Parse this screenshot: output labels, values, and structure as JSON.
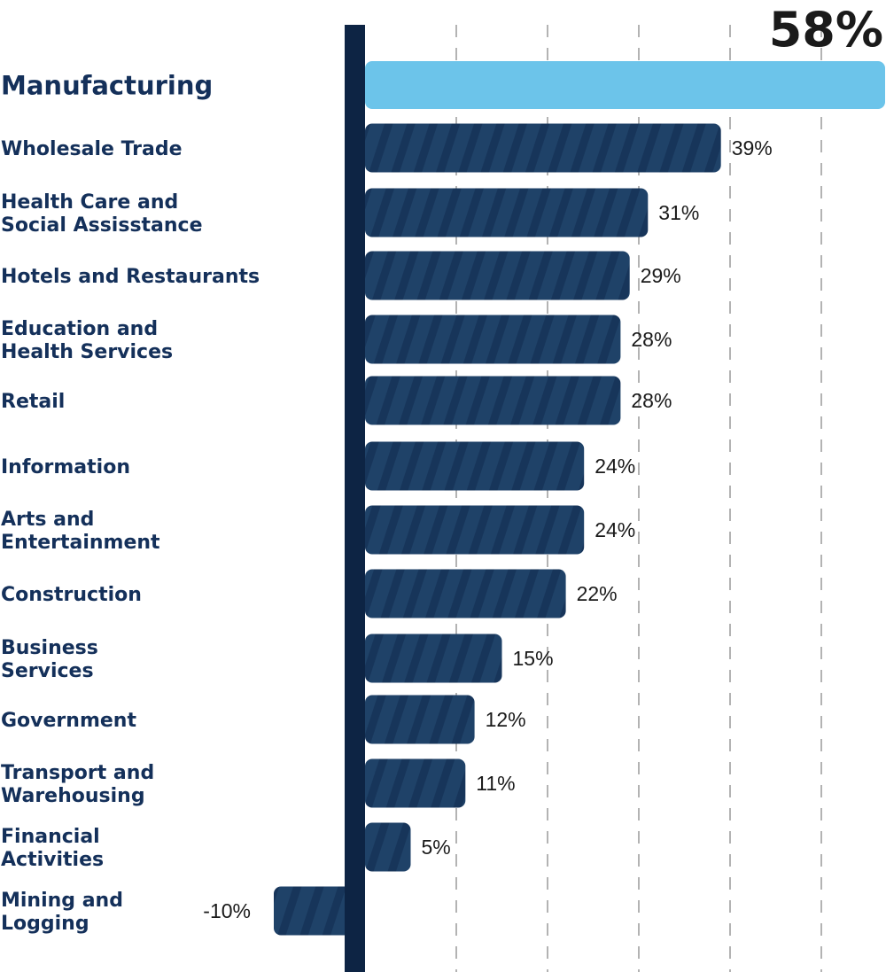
{
  "chart_data": {
    "type": "bar",
    "orientation": "horizontal",
    "categories": [
      [
        "Manufacturing"
      ],
      [
        "Wholesale Trade"
      ],
      [
        "Health Care and",
        "Social Assisstance"
      ],
      [
        "Hotels and Restaurants"
      ],
      [
        "Education and",
        "Health Services"
      ],
      [
        "Retail"
      ],
      [
        "Information"
      ],
      [
        "Arts and",
        "Entertainment"
      ],
      [
        "Construction"
      ],
      [
        "Business",
        "Services"
      ],
      [
        "Government"
      ],
      [
        "Transport and",
        "Warehousing"
      ],
      [
        "Financial",
        "Activities"
      ],
      [
        "Mining and",
        "Logging"
      ]
    ],
    "values": [
      58,
      39,
      31,
      29,
      28,
      28,
      24,
      24,
      22,
      15,
      12,
      11,
      5,
      -10
    ],
    "value_labels": [
      "58%",
      "39%",
      "31%",
      "29%",
      "28%",
      "28%",
      "24%",
      "24%",
      "22%",
      "15%",
      "12%",
      "11%",
      "5%",
      "-10%"
    ],
    "highlight_index": 0,
    "xlim": [
      -11,
      58
    ],
    "grid": true,
    "colors": {
      "highlight": "#6cc4ea",
      "bar": "#1f4268",
      "stripe": "#17355a",
      "axis": "#0d2444",
      "label": "#14305a",
      "grid": "#b3b3b3",
      "value": "#1a1a1a"
    }
  }
}
